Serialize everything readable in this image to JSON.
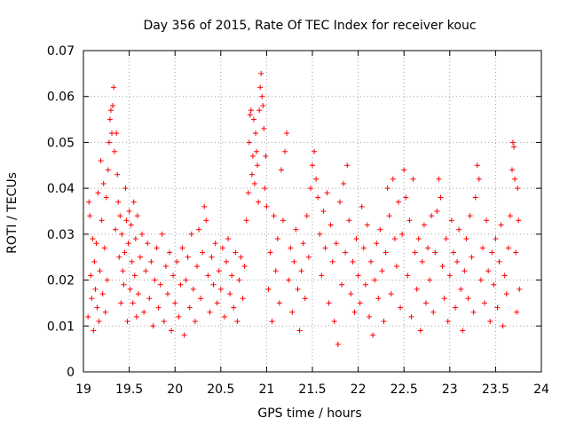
{
  "chart_data": {
    "type": "scatter",
    "title": "Day 356 of 2015, Rate Of TEC Index for receiver kouc",
    "xlabel": "GPS time / hours",
    "ylabel": "ROTI / TECUs",
    "xlim": [
      19,
      24
    ],
    "ylim": [
      0,
      0.07
    ],
    "x_ticks": [
      19,
      19.5,
      20,
      20.5,
      21,
      21.5,
      22,
      22.5,
      23,
      23.5,
      24
    ],
    "x_tick_labels": [
      "19",
      "19.5",
      "20",
      "20.5",
      "21",
      "21.5",
      "22",
      "22.5",
      "23",
      "23.5",
      "24"
    ],
    "y_ticks": [
      0,
      0.01,
      0.02,
      0.03,
      0.04,
      0.05,
      0.06,
      0.07
    ],
    "y_tick_labels": [
      "0",
      "0.01",
      "0.02",
      "0.03",
      "0.04",
      "0.05",
      "0.06",
      "0.07"
    ],
    "grid": true,
    "marker": "+",
    "marker_color": "#ff0000",
    "series": [
      {
        "name": "ROTI",
        "points": [
          [
            19.05,
            0.012
          ],
          [
            19.06,
            0.037
          ],
          [
            19.07,
            0.034
          ],
          [
            19.08,
            0.021
          ],
          [
            19.09,
            0.016
          ],
          [
            19.1,
            0.029
          ],
          [
            19.11,
            0.009
          ],
          [
            19.12,
            0.024
          ],
          [
            19.13,
            0.018
          ],
          [
            19.14,
            0.028
          ],
          [
            19.15,
            0.014
          ],
          [
            19.16,
            0.039
          ],
          [
            19.17,
            0.011
          ],
          [
            19.18,
            0.022
          ],
          [
            19.19,
            0.046
          ],
          [
            19.2,
            0.033
          ],
          [
            19.21,
            0.017
          ],
          [
            19.22,
            0.041
          ],
          [
            19.23,
            0.027
          ],
          [
            19.24,
            0.013
          ],
          [
            19.25,
            0.038
          ],
          [
            19.26,
            0.02
          ],
          [
            19.27,
            0.044
          ],
          [
            19.28,
            0.05
          ],
          [
            19.29,
            0.055
          ],
          [
            19.3,
            0.057
          ],
          [
            19.31,
            0.052
          ],
          [
            19.32,
            0.058
          ],
          [
            19.33,
            0.062
          ],
          [
            19.34,
            0.048
          ],
          [
            19.35,
            0.031
          ],
          [
            19.36,
            0.052
          ],
          [
            19.37,
            0.043
          ],
          [
            19.38,
            0.037
          ],
          [
            19.39,
            0.025
          ],
          [
            19.4,
            0.034
          ],
          [
            19.41,
            0.015
          ],
          [
            19.42,
            0.03
          ],
          [
            19.43,
            0.022
          ],
          [
            19.44,
            0.019
          ],
          [
            19.45,
            0.026
          ],
          [
            19.46,
            0.04
          ],
          [
            19.47,
            0.033
          ],
          [
            19.48,
            0.011
          ],
          [
            19.49,
            0.028
          ],
          [
            19.5,
            0.035
          ],
          [
            19.51,
            0.018
          ],
          [
            19.52,
            0.032
          ],
          [
            19.53,
            0.024
          ],
          [
            19.54,
            0.015
          ],
          [
            19.55,
            0.037
          ],
          [
            19.56,
            0.021
          ],
          [
            19.57,
            0.029
          ],
          [
            19.58,
            0.012
          ],
          [
            19.59,
            0.034
          ],
          [
            19.6,
            0.017
          ],
          [
            19.62,
            0.025
          ],
          [
            19.64,
            0.03
          ],
          [
            19.66,
            0.013
          ],
          [
            19.68,
            0.022
          ],
          [
            19.7,
            0.028
          ],
          [
            19.72,
            0.016
          ],
          [
            19.74,
            0.024
          ],
          [
            19.76,
            0.01
          ],
          [
            19.78,
            0.02
          ],
          [
            19.8,
            0.027
          ],
          [
            19.82,
            0.014
          ],
          [
            19.84,
            0.019
          ],
          [
            19.86,
            0.03
          ],
          [
            19.88,
            0.011
          ],
          [
            19.9,
            0.023
          ],
          [
            19.92,
            0.017
          ],
          [
            19.94,
            0.026
          ],
          [
            19.96,
            0.009
          ],
          [
            19.98,
            0.021
          ],
          [
            20.0,
            0.015
          ],
          [
            20.02,
            0.024
          ],
          [
            20.04,
            0.012
          ],
          [
            20.06,
            0.019
          ],
          [
            20.08,
            0.027
          ],
          [
            20.1,
            0.008
          ],
          [
            20.12,
            0.02
          ],
          [
            20.14,
            0.025
          ],
          [
            20.16,
            0.014
          ],
          [
            20.18,
            0.03
          ],
          [
            20.2,
            0.018
          ],
          [
            20.22,
            0.011
          ],
          [
            20.24,
            0.023
          ],
          [
            20.26,
            0.031
          ],
          [
            20.28,
            0.016
          ],
          [
            20.3,
            0.026
          ],
          [
            20.32,
            0.036
          ],
          [
            20.34,
            0.033
          ],
          [
            20.36,
            0.021
          ],
          [
            20.38,
            0.013
          ],
          [
            20.4,
            0.025
          ],
          [
            20.42,
            0.019
          ],
          [
            20.44,
            0.028
          ],
          [
            20.46,
            0.015
          ],
          [
            20.48,
            0.022
          ],
          [
            20.5,
            0.018
          ],
          [
            20.52,
            0.027
          ],
          [
            20.54,
            0.012
          ],
          [
            20.56,
            0.024
          ],
          [
            20.58,
            0.029
          ],
          [
            20.6,
            0.017
          ],
          [
            20.62,
            0.021
          ],
          [
            20.64,
            0.014
          ],
          [
            20.66,
            0.026
          ],
          [
            20.68,
            0.011
          ],
          [
            20.7,
            0.02
          ],
          [
            20.72,
            0.025
          ],
          [
            20.74,
            0.016
          ],
          [
            20.76,
            0.023
          ],
          [
            20.78,
            0.033
          ],
          [
            20.8,
            0.039
          ],
          [
            20.81,
            0.05
          ],
          [
            20.82,
            0.056
          ],
          [
            20.83,
            0.057
          ],
          [
            20.84,
            0.043
          ],
          [
            20.85,
            0.047
          ],
          [
            20.86,
            0.055
          ],
          [
            20.87,
            0.041
          ],
          [
            20.88,
            0.052
          ],
          [
            20.89,
            0.048
          ],
          [
            20.9,
            0.045
          ],
          [
            20.91,
            0.037
          ],
          [
            20.92,
            0.057
          ],
          [
            20.93,
            0.062
          ],
          [
            20.94,
            0.065
          ],
          [
            20.95,
            0.06
          ],
          [
            20.96,
            0.058
          ],
          [
            20.97,
            0.053
          ],
          [
            20.98,
            0.04
          ],
          [
            20.99,
            0.047
          ],
          [
            21.0,
            0.036
          ],
          [
            21.02,
            0.018
          ],
          [
            21.04,
            0.026
          ],
          [
            21.06,
            0.011
          ],
          [
            21.08,
            0.034
          ],
          [
            21.1,
            0.022
          ],
          [
            21.12,
            0.029
          ],
          [
            21.14,
            0.015
          ],
          [
            21.16,
            0.044
          ],
          [
            21.18,
            0.033
          ],
          [
            21.2,
            0.048
          ],
          [
            21.22,
            0.052
          ],
          [
            21.24,
            0.02
          ],
          [
            21.26,
            0.027
          ],
          [
            21.28,
            0.013
          ],
          [
            21.3,
            0.024
          ],
          [
            21.32,
            0.031
          ],
          [
            21.34,
            0.018
          ],
          [
            21.36,
            0.009
          ],
          [
            21.38,
            0.022
          ],
          [
            21.4,
            0.028
          ],
          [
            21.42,
            0.016
          ],
          [
            21.44,
            0.034
          ],
          [
            21.46,
            0.025
          ],
          [
            21.48,
            0.04
          ],
          [
            21.5,
            0.045
          ],
          [
            21.52,
            0.048
          ],
          [
            21.54,
            0.042
          ],
          [
            21.56,
            0.038
          ],
          [
            21.58,
            0.03
          ],
          [
            21.6,
            0.021
          ],
          [
            21.62,
            0.035
          ],
          [
            21.64,
            0.027
          ],
          [
            21.66,
            0.039
          ],
          [
            21.68,
            0.015
          ],
          [
            21.7,
            0.032
          ],
          [
            21.72,
            0.024
          ],
          [
            21.74,
            0.011
          ],
          [
            21.76,
            0.028
          ],
          [
            21.78,
            0.006
          ],
          [
            21.8,
            0.037
          ],
          [
            21.82,
            0.019
          ],
          [
            21.84,
            0.041
          ],
          [
            21.86,
            0.026
          ],
          [
            21.88,
            0.045
          ],
          [
            21.9,
            0.033
          ],
          [
            21.92,
            0.017
          ],
          [
            21.94,
            0.024
          ],
          [
            21.96,
            0.013
          ],
          [
            21.98,
            0.029
          ],
          [
            22.0,
            0.021
          ],
          [
            22.02,
            0.015
          ],
          [
            22.04,
            0.036
          ],
          [
            22.06,
            0.027
          ],
          [
            22.08,
            0.019
          ],
          [
            22.1,
            0.032
          ],
          [
            22.12,
            0.012
          ],
          [
            22.14,
            0.024
          ],
          [
            22.16,
            0.008
          ],
          [
            22.18,
            0.02
          ],
          [
            22.2,
            0.028
          ],
          [
            22.22,
            0.016
          ],
          [
            22.24,
            0.031
          ],
          [
            22.26,
            0.022
          ],
          [
            22.28,
            0.011
          ],
          [
            22.3,
            0.026
          ],
          [
            22.32,
            0.04
          ],
          [
            22.34,
            0.034
          ],
          [
            22.36,
            0.017
          ],
          [
            22.38,
            0.042
          ],
          [
            22.4,
            0.029
          ],
          [
            22.42,
            0.023
          ],
          [
            22.44,
            0.037
          ],
          [
            22.46,
            0.014
          ],
          [
            22.48,
            0.03
          ],
          [
            22.5,
            0.044
          ],
          [
            22.52,
            0.038
          ],
          [
            22.54,
            0.021
          ],
          [
            22.56,
            0.033
          ],
          [
            22.58,
            0.012
          ],
          [
            22.6,
            0.042
          ],
          [
            22.62,
            0.026
          ],
          [
            22.64,
            0.018
          ],
          [
            22.66,
            0.029
          ],
          [
            22.68,
            0.009
          ],
          [
            22.7,
            0.024
          ],
          [
            22.72,
            0.032
          ],
          [
            22.74,
            0.015
          ],
          [
            22.76,
            0.027
          ],
          [
            22.78,
            0.02
          ],
          [
            22.8,
            0.034
          ],
          [
            22.82,
            0.013
          ],
          [
            22.84,
            0.026
          ],
          [
            22.86,
            0.035
          ],
          [
            22.88,
            0.042
          ],
          [
            22.9,
            0.038
          ],
          [
            22.92,
            0.023
          ],
          [
            22.94,
            0.016
          ],
          [
            22.96,
            0.029
          ],
          [
            22.98,
            0.011
          ],
          [
            23.0,
            0.021
          ],
          [
            23.02,
            0.033
          ],
          [
            23.04,
            0.026
          ],
          [
            23.06,
            0.014
          ],
          [
            23.08,
            0.024
          ],
          [
            23.1,
            0.031
          ],
          [
            23.12,
            0.018
          ],
          [
            23.14,
            0.009
          ],
          [
            23.16,
            0.022
          ],
          [
            23.18,
            0.029
          ],
          [
            23.2,
            0.016
          ],
          [
            23.22,
            0.034
          ],
          [
            23.24,
            0.025
          ],
          [
            23.26,
            0.013
          ],
          [
            23.28,
            0.038
          ],
          [
            23.3,
            0.045
          ],
          [
            23.32,
            0.042
          ],
          [
            23.34,
            0.02
          ],
          [
            23.36,
            0.027
          ],
          [
            23.38,
            0.015
          ],
          [
            23.4,
            0.033
          ],
          [
            23.42,
            0.022
          ],
          [
            23.44,
            0.011
          ],
          [
            23.46,
            0.026
          ],
          [
            23.48,
            0.019
          ],
          [
            23.5,
            0.029
          ],
          [
            23.52,
            0.014
          ],
          [
            23.54,
            0.024
          ],
          [
            23.56,
            0.032
          ],
          [
            23.58,
            0.01
          ],
          [
            23.6,
            0.021
          ],
          [
            23.62,
            0.017
          ],
          [
            23.64,
            0.027
          ],
          [
            23.66,
            0.034
          ],
          [
            23.68,
            0.044
          ],
          [
            23.69,
            0.05
          ],
          [
            23.7,
            0.049
          ],
          [
            23.71,
            0.042
          ],
          [
            23.72,
            0.026
          ],
          [
            23.73,
            0.013
          ],
          [
            23.74,
            0.04
          ],
          [
            23.75,
            0.033
          ],
          [
            23.76,
            0.018
          ]
        ]
      }
    ]
  }
}
